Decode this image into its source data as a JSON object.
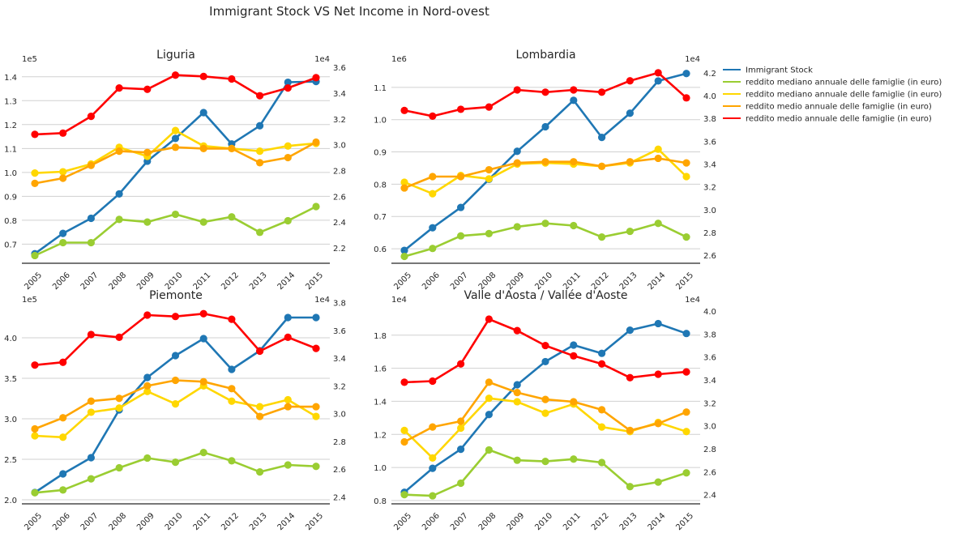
{
  "title": "Immigrant Stock VS Net Income in Nord-ovest",
  "legend": {
    "placement": "right",
    "entries": [
      {
        "label": "Immigrant Stock",
        "color": "#1f77b4"
      },
      {
        "label": "reddito mediano annuale delle famiglie (in euro)",
        "color": "#9acd32"
      },
      {
        "label": "reddito mediano annuale delle famiglie (in euro)",
        "color": "#ffd700"
      },
      {
        "label": "reddito medio annuale delle famiglie (in euro)",
        "color": "#ffa500"
      },
      {
        "label": "reddito medio annuale delle famiglie (in euro)",
        "color": "#ff0000"
      }
    ]
  },
  "chart_data": [
    {
      "type": "line",
      "title": "Liguria",
      "categories": [
        "2005",
        "2006",
        "2007",
        "2008",
        "2009",
        "2010",
        "2011",
        "2012",
        "2013",
        "2014",
        "2015"
      ],
      "left_axis": {
        "multiplier": "1e5",
        "ylim": [
          0.62,
          1.45
        ],
        "ticks": [
          0.7,
          0.8,
          0.9,
          1.0,
          1.1,
          1.2,
          1.3,
          1.4
        ],
        "tick_labels": [
          "0.7",
          "0.8",
          "0.9",
          "1.0",
          "1.1",
          "1.2",
          "1.3",
          "1.4"
        ]
      },
      "right_axis": {
        "multiplier": "1e4",
        "ylim": [
          2.08,
          3.62
        ],
        "ticks": [
          2.2,
          2.4,
          2.6,
          2.8,
          3.0,
          3.2,
          3.4,
          3.6
        ],
        "tick_labels": [
          "2.2",
          "2.4",
          "2.6",
          "2.8",
          "3.0",
          "3.2",
          "3.4",
          "3.6"
        ]
      },
      "series": [
        {
          "name": "Immigrant Stock",
          "axis": "left",
          "color": "#1f77b4",
          "values": [
            0.66,
            0.745,
            0.808,
            0.91,
            1.047,
            1.142,
            1.25,
            1.119,
            1.195,
            1.377,
            1.38
          ]
        },
        {
          "name": "reddito mediano annuale delle famiglie (in euro)",
          "axis": "right",
          "color": "#9acd32",
          "values": [
            2.14,
            2.24,
            2.24,
            2.42,
            2.4,
            2.46,
            2.4,
            2.44,
            2.32,
            2.41,
            2.52
          ]
        },
        {
          "name": "reddito mediano annuale delle famiglie (in euro)",
          "axis": "right",
          "color": "#ffd700",
          "values": [
            2.78,
            2.79,
            2.85,
            2.98,
            2.91,
            3.11,
            2.99,
            2.97,
            2.95,
            2.99,
            3.01
          ]
        },
        {
          "name": "reddito medio annuale delle famiglie (in euro)",
          "axis": "right",
          "color": "#ffa500",
          "values": [
            2.7,
            2.74,
            2.84,
            2.95,
            2.94,
            2.98,
            2.97,
            2.97,
            2.86,
            2.9,
            3.02
          ]
        },
        {
          "name": "reddito medio annuale delle famiglie (in euro)",
          "axis": "right",
          "color": "#ff0000",
          "values": [
            3.08,
            3.09,
            3.22,
            3.44,
            3.43,
            3.54,
            3.53,
            3.51,
            3.38,
            3.44,
            3.52
          ]
        }
      ]
    },
    {
      "type": "line",
      "title": "Lombardia",
      "categories": [
        "2005",
        "2006",
        "2007",
        "2008",
        "2009",
        "2010",
        "2011",
        "2012",
        "2013",
        "2014",
        "2015"
      ],
      "left_axis": {
        "multiplier": "1e6",
        "ylim": [
          0.555,
          1.17
        ],
        "ticks": [
          0.6,
          0.7,
          0.8,
          0.9,
          1.0,
          1.1
        ],
        "tick_labels": [
          "0.6",
          "0.7",
          "0.8",
          "0.9",
          "1.0",
          "1.1"
        ]
      },
      "right_axis": {
        "multiplier": "1e4",
        "ylim": [
          2.53,
          4.27
        ],
        "ticks": [
          2.6,
          2.8,
          3.0,
          3.2,
          3.4,
          3.6,
          3.8,
          4.0,
          4.2
        ],
        "tick_labels": [
          "2.6",
          "2.8",
          "3.0",
          "3.2",
          "3.4",
          "3.6",
          "3.8",
          "4.0",
          "4.2"
        ]
      },
      "series": [
        {
          "name": "Immigrant Stock",
          "axis": "left",
          "color": "#1f77b4",
          "values": [
            0.595,
            0.665,
            0.728,
            0.815,
            0.902,
            0.978,
            1.06,
            0.945,
            1.02,
            1.12,
            1.143
          ]
        },
        {
          "name": "reddito mediano annuale delle famiglie (in euro)",
          "axis": "right",
          "color": "#9acd32",
          "values": [
            2.59,
            2.66,
            2.77,
            2.79,
            2.85,
            2.88,
            2.86,
            2.76,
            2.81,
            2.88,
            2.76
          ]
        },
        {
          "name": "reddito mediano annuale delle famiglie (in euro)",
          "axis": "right",
          "color": "#ffd700",
          "values": [
            3.24,
            3.14,
            3.3,
            3.27,
            3.4,
            3.41,
            3.4,
            3.38,
            3.41,
            3.53,
            3.29
          ]
        },
        {
          "name": "reddito medio annuale delle famiglie (in euro)",
          "axis": "right",
          "color": "#ffa500",
          "values": [
            3.19,
            3.29,
            3.29,
            3.35,
            3.41,
            3.42,
            3.42,
            3.38,
            3.42,
            3.45,
            3.41
          ]
        },
        {
          "name": "reddito medio annuale delle famiglie (in euro)",
          "axis": "right",
          "color": "#ff0000",
          "values": [
            3.87,
            3.82,
            3.88,
            3.9,
            4.05,
            4.03,
            4.05,
            4.03,
            4.13,
            4.2,
            3.98
          ]
        }
      ]
    },
    {
      "type": "line",
      "title": "Piemonte",
      "categories": [
        "2005",
        "2006",
        "2007",
        "2008",
        "2009",
        "2010",
        "2011",
        "2012",
        "2013",
        "2014",
        "2015"
      ],
      "left_axis": {
        "multiplier": "1e5",
        "ylim": [
          1.95,
          4.4
        ],
        "ticks": [
          2.0,
          2.5,
          3.0,
          3.5,
          4.0
        ],
        "tick_labels": [
          "2.0",
          "2.5",
          "3.0",
          "3.5",
          "4.0"
        ]
      },
      "right_axis": {
        "multiplier": "1e4",
        "ylim": [
          2.35,
          3.78
        ],
        "ticks": [
          2.4,
          2.6,
          2.8,
          3.0,
          3.2,
          3.4,
          3.6,
          3.8
        ],
        "tick_labels": [
          "2.4",
          "2.6",
          "2.8",
          "3.0",
          "3.2",
          "3.4",
          "3.6",
          "3.8"
        ]
      },
      "series": [
        {
          "name": "Immigrant Stock",
          "axis": "left",
          "color": "#1f77b4",
          "values": [
            2.09,
            2.32,
            2.52,
            3.11,
            3.51,
            3.78,
            3.99,
            3.61,
            3.84,
            4.25,
            4.25
          ]
        },
        {
          "name": "reddito mediano annuale delle famiglie (in euro)",
          "axis": "right",
          "color": "#9acd32",
          "values": [
            2.43,
            2.45,
            2.53,
            2.61,
            2.68,
            2.65,
            2.72,
            2.66,
            2.58,
            2.63,
            2.62
          ]
        },
        {
          "name": "reddito mediano annuale delle famiglie (in euro)",
          "axis": "right",
          "color": "#ffd700",
          "values": [
            2.84,
            2.83,
            3.01,
            3.04,
            3.16,
            3.07,
            3.2,
            3.09,
            3.05,
            3.1,
            2.98
          ]
        },
        {
          "name": "reddito medio annuale delle famiglie (in euro)",
          "axis": "right",
          "color": "#ffa500",
          "values": [
            2.89,
            2.97,
            3.09,
            3.11,
            3.2,
            3.24,
            3.23,
            3.18,
            2.98,
            3.05,
            3.05
          ]
        },
        {
          "name": "reddito medio annuale delle famiglie (in euro)",
          "axis": "right",
          "color": "#ff0000",
          "values": [
            3.35,
            3.37,
            3.57,
            3.55,
            3.71,
            3.7,
            3.72,
            3.68,
            3.45,
            3.55,
            3.47
          ]
        }
      ]
    },
    {
      "type": "line",
      "title": "Valle d'Aosta / Vallée d'Aoste",
      "categories": [
        "2005",
        "2006",
        "2007",
        "2008",
        "2009",
        "2010",
        "2011",
        "2012",
        "2013",
        "2014",
        "2015"
      ],
      "left_axis": {
        "multiplier": "1e4",
        "ylim": [
          0.78,
          1.98
        ],
        "ticks": [
          0.8,
          1.0,
          1.2,
          1.4,
          1.6,
          1.8
        ],
        "tick_labels": [
          "0.8",
          "1.0",
          "1.2",
          "1.4",
          "1.6",
          "1.8"
        ]
      },
      "right_axis": {
        "multiplier": "1e4",
        "ylim": [
          2.32,
          4.05
        ],
        "ticks": [
          2.4,
          2.6,
          2.8,
          3.0,
          3.2,
          3.4,
          3.6,
          3.8,
          4.0
        ],
        "tick_labels": [
          "2.4",
          "2.6",
          "2.8",
          "3.0",
          "3.2",
          "3.4",
          "3.6",
          "3.8",
          "4.0"
        ]
      },
      "series": [
        {
          "name": "Immigrant Stock",
          "axis": "left",
          "color": "#1f77b4",
          "values": [
            0.85,
            0.995,
            1.11,
            1.32,
            1.5,
            1.64,
            1.74,
            1.69,
            1.83,
            1.87,
            1.81
          ]
        },
        {
          "name": "reddito mediano annuale delle famiglie (in euro)",
          "axis": "right",
          "color": "#9acd32",
          "values": [
            2.4,
            2.39,
            2.5,
            2.79,
            2.7,
            2.69,
            2.71,
            2.68,
            2.47,
            2.51,
            2.59
          ]
        },
        {
          "name": "reddito mediano annuale delle famiglie (in euro)",
          "axis": "right",
          "color": "#ffd700",
          "values": [
            2.96,
            2.72,
            2.98,
            3.24,
            3.21,
            3.11,
            3.19,
            2.99,
            2.95,
            3.03,
            2.95
          ]
        },
        {
          "name": "reddito medio annuale delle famiglie (in euro)",
          "axis": "right",
          "color": "#ffa500",
          "values": [
            2.86,
            2.99,
            3.04,
            3.38,
            3.29,
            3.23,
            3.21,
            3.14,
            2.96,
            3.02,
            3.12
          ]
        },
        {
          "name": "reddito medio annuale delle famiglie (in euro)",
          "axis": "right",
          "color": "#ff0000",
          "values": [
            3.38,
            3.39,
            3.54,
            3.93,
            3.83,
            3.7,
            3.61,
            3.54,
            3.42,
            3.45,
            3.47
          ]
        }
      ]
    }
  ]
}
